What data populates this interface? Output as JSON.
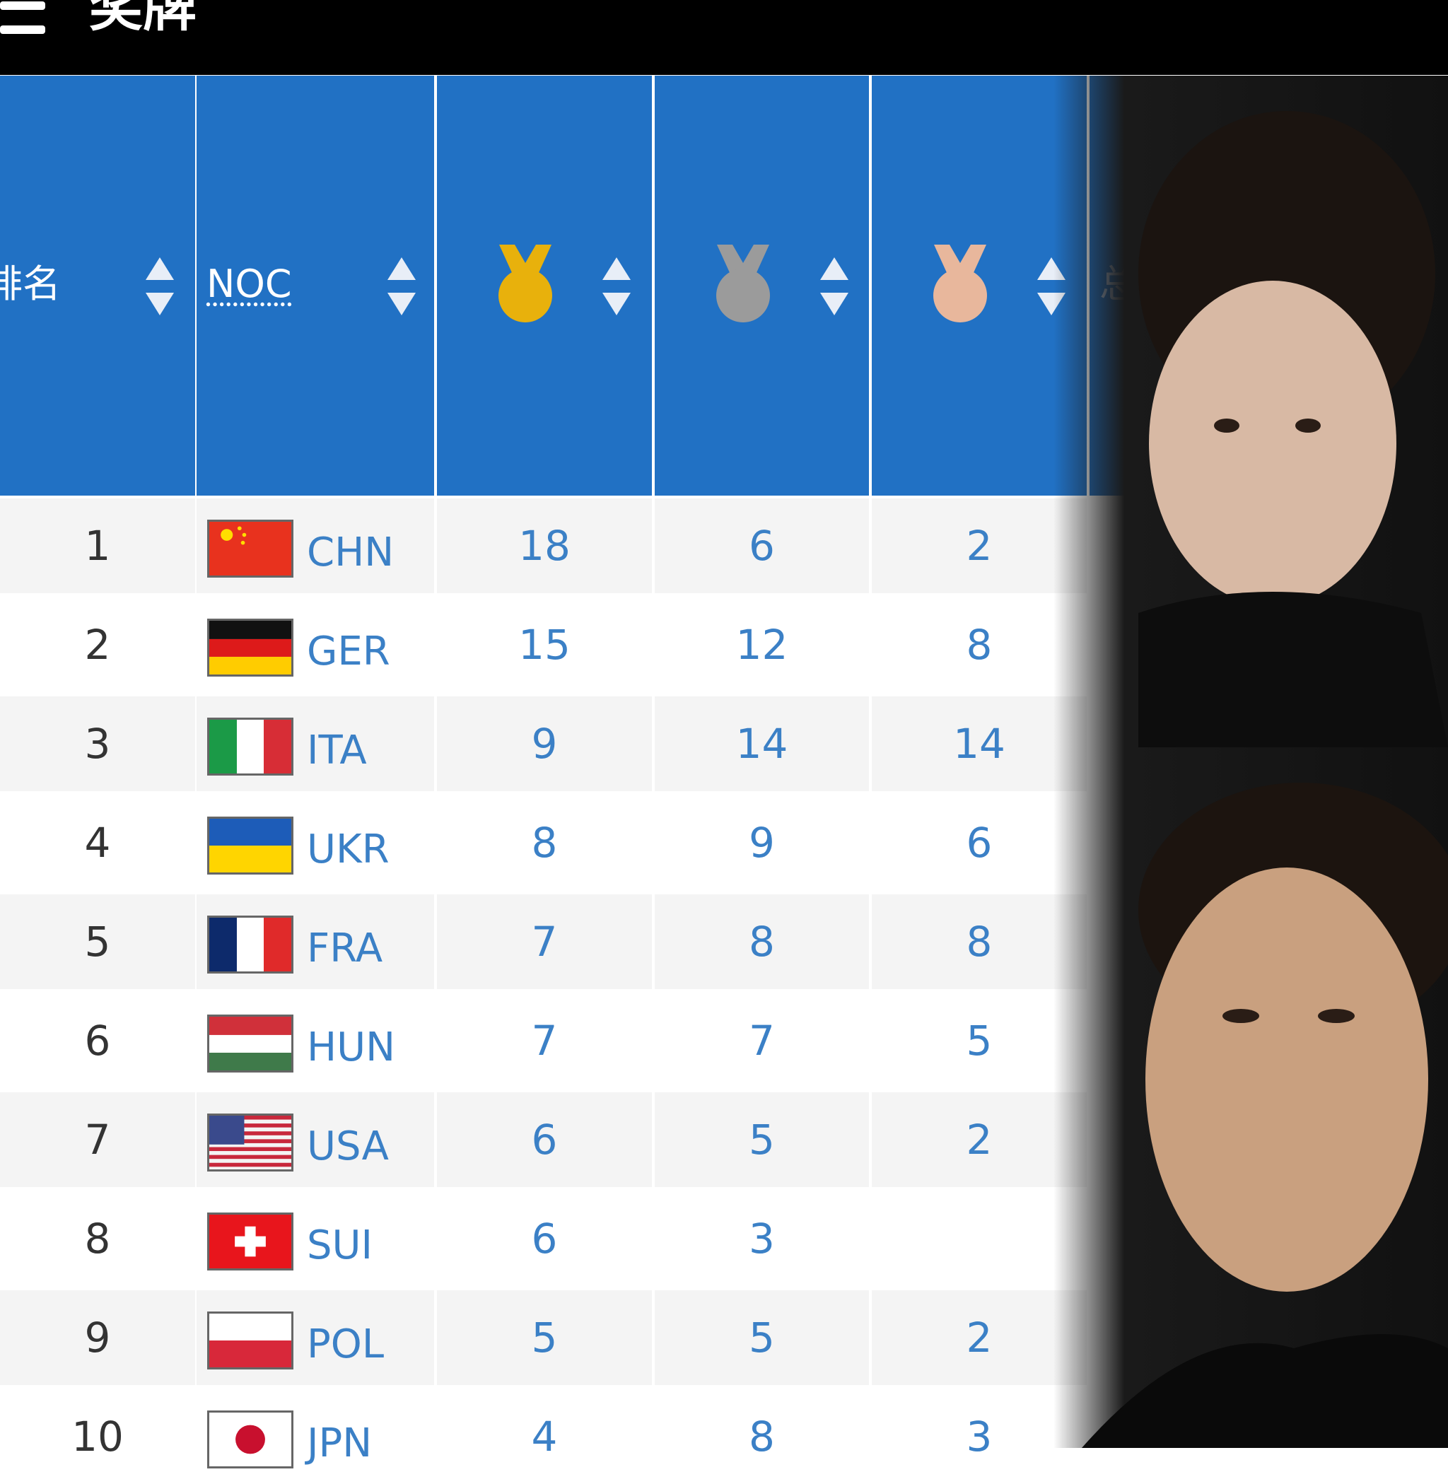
{
  "header": {
    "title": "奖牌"
  },
  "table": {
    "columns": {
      "rank": "排名",
      "noc": "NOC",
      "total": "总"
    },
    "rows": [
      [
        1,
        "CHN",
        18,
        6,
        2
      ],
      [
        2,
        "GER",
        15,
        12,
        8
      ],
      [
        3,
        "ITA",
        9,
        14,
        14
      ],
      [
        4,
        "UKR",
        8,
        9,
        6
      ],
      [
        5,
        "FRA",
        7,
        8,
        8
      ],
      [
        6,
        "HUN",
        7,
        7,
        5
      ],
      [
        7,
        "USA",
        6,
        5,
        2
      ],
      [
        8,
        "SUI",
        6,
        3,
        null
      ],
      [
        9,
        "POL",
        5,
        5,
        2
      ],
      [
        10,
        "JPN",
        4,
        8,
        3
      ]
    ]
  }
}
